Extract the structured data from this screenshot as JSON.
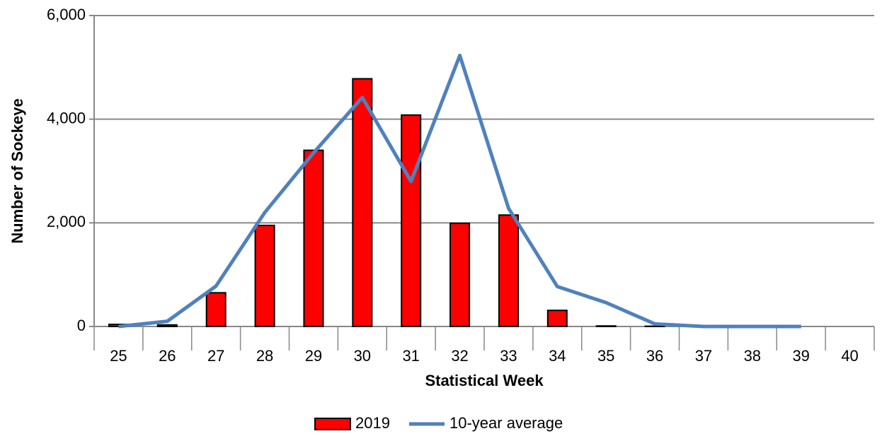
{
  "chart_data": {
    "type": "bar",
    "x_label": "Statistical Week",
    "y_label": "Number of Sockeye",
    "categories": [
      "25",
      "26",
      "27",
      "28",
      "29",
      "30",
      "31",
      "32",
      "33",
      "34",
      "35",
      "36",
      "37",
      "38",
      "39",
      "40"
    ],
    "series": [
      {
        "name": "2019",
        "type": "bar",
        "color": "#ff0000",
        "values": [
          40,
          30,
          650,
          1950,
          3400,
          4780,
          4080,
          1990,
          2150,
          310,
          10,
          5,
          null,
          null,
          null,
          null
        ]
      },
      {
        "name": "10-year average",
        "type": "line",
        "color": "#4f81bd",
        "values": [
          0,
          100,
          780,
          2200,
          3350,
          4420,
          2800,
          5230,
          2280,
          770,
          460,
          50,
          0,
          0,
          0,
          null
        ]
      }
    ],
    "ylim": [
      0,
      6000
    ],
    "yticks": [
      0,
      {
        "value": 2000,
        "label": "2,000"
      },
      {
        "value": 4000,
        "label": "4,000"
      },
      {
        "value": 6000,
        "label": "6,000"
      }
    ],
    "grid": true,
    "legend": "bottom"
  }
}
